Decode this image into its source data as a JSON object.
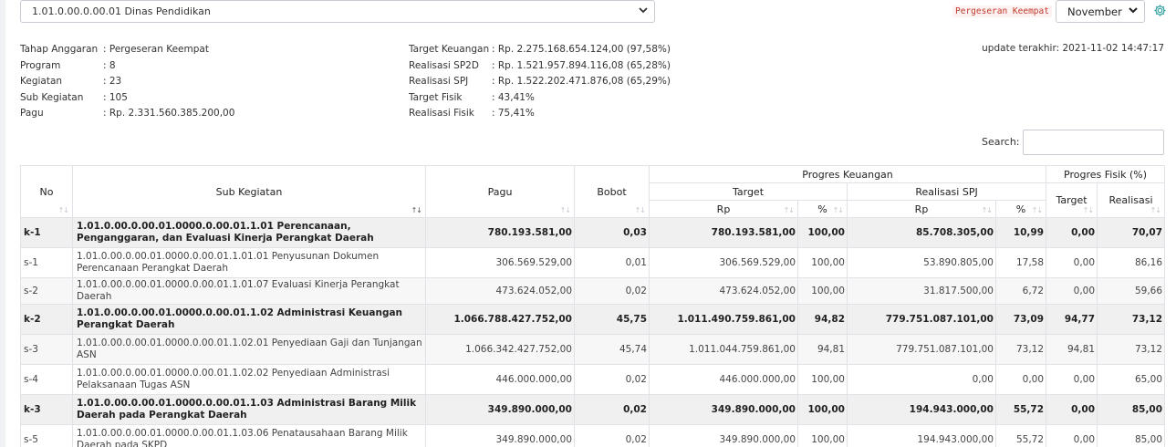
{
  "unit_select": {
    "value": "1.01.0.00.0.00.01 Dinas Pendidikan"
  },
  "stage_badge": "Pergeseran Keempat",
  "month_select": {
    "value": "November"
  },
  "info_left": [
    {
      "label": "Tahap Anggaran",
      "value": ": Pergeseran Keempat"
    },
    {
      "label": "Program",
      "value": ": 8"
    },
    {
      "label": "Kegiatan",
      "value": ": 23"
    },
    {
      "label": "Sub Kegiatan",
      "value": ": 105"
    },
    {
      "label": "Pagu",
      "value": ": Rp. 2.331.560.385.200,00"
    }
  ],
  "info_right": [
    {
      "label": "Target Keuangan",
      "value": ": Rp. 2.275.168.654.124,00 (97,58%)"
    },
    {
      "label": "Realisasi SP2D",
      "value": ": Rp. 1.521.957.894.116,08 (65,28%)"
    },
    {
      "label": "Realisasi SPJ",
      "value": ": Rp. 1.522.202.471.876,08 (65,29%)"
    },
    {
      "label": "Target Fisik",
      "value": ": 43,41%"
    },
    {
      "label": "Realisasi Fisik",
      "value": ": 75,41%"
    }
  ],
  "update_text": "update terakhir: 2021-11-02 14:47:17",
  "search": {
    "label": "Search:",
    "value": ""
  },
  "headers": {
    "no": "No",
    "sub_kegiatan": "Sub Kegiatan",
    "pagu": "Pagu",
    "bobot": "Bobot",
    "progres_keuangan": "Progres Keuangan",
    "progres_fisik": "Progres Fisik (%)",
    "target": "Target",
    "realisasi_spj": "Realisasi SPJ",
    "rp": "Rp",
    "pct": "%",
    "fisik_target": "Target",
    "fisik_realisasi": "Realisasi"
  },
  "rows": [
    {
      "type": "k",
      "no": "k-1",
      "desc": "1.01.0.00.0.00.01.0000.0.00.01.1.01 Perencanaan, Penganggaran, dan Evaluasi Kinerja Perangkat Daerah",
      "pagu": "780.193.581,00",
      "bobot": "0,03",
      "target_rp": "780.193.581,00",
      "target_pct": "100,00",
      "spj_rp": "85.708.305,00",
      "spj_pct": "10,99",
      "fisik_target": "0,00",
      "fisik_realisasi": "70,07"
    },
    {
      "type": "s",
      "no": "s-1",
      "desc": "1.01.0.00.0.00.01.0000.0.00.01.1.01.01 Penyusunan Dokumen Perencanaan Perangkat Daerah",
      "pagu": "306.569.529,00",
      "bobot": "0,01",
      "target_rp": "306.569.529,00",
      "target_pct": "100,00",
      "spj_rp": "53.890.805,00",
      "spj_pct": "17,58",
      "fisik_target": "0,00",
      "fisik_realisasi": "86,16"
    },
    {
      "type": "s",
      "no": "s-2",
      "desc": "1.01.0.00.0.00.01.0000.0.00.01.1.01.07 Evaluasi Kinerja Perangkat Daerah",
      "pagu": "473.624.052,00",
      "bobot": "0,02",
      "target_rp": "473.624.052,00",
      "target_pct": "100,00",
      "spj_rp": "31.817.500,00",
      "spj_pct": "6,72",
      "fisik_target": "0,00",
      "fisik_realisasi": "59,66"
    },
    {
      "type": "k",
      "no": "k-2",
      "desc": "1.01.0.00.0.00.01.0000.0.00.01.1.02 Administrasi Keuangan Perangkat Daerah",
      "pagu": "1.066.788.427.752,00",
      "bobot": "45,75",
      "target_rp": "1.011.490.759.861,00",
      "target_pct": "94,82",
      "spj_rp": "779.751.087.101,00",
      "spj_pct": "73,09",
      "fisik_target": "94,77",
      "fisik_realisasi": "73,12"
    },
    {
      "type": "s",
      "no": "s-3",
      "desc": "1.01.0.00.0.00.01.0000.0.00.01.1.02.01 Penyediaan Gaji dan Tunjangan ASN",
      "pagu": "1.066.342.427.752,00",
      "bobot": "45,74",
      "target_rp": "1.011.044.759.861,00",
      "target_pct": "94,81",
      "spj_rp": "779.751.087.101,00",
      "spj_pct": "73,12",
      "fisik_target": "94,81",
      "fisik_realisasi": "73,12"
    },
    {
      "type": "s",
      "no": "s-4",
      "desc": "1.01.0.00.0.00.01.0000.0.00.01.1.02.02 Penyediaan Administrasi Pelaksanaan Tugas ASN",
      "pagu": "446.000.000,00",
      "bobot": "0,02",
      "target_rp": "446.000.000,00",
      "target_pct": "100,00",
      "spj_rp": "0,00",
      "spj_pct": "0,00",
      "fisik_target": "0,00",
      "fisik_realisasi": "65,00"
    },
    {
      "type": "k",
      "no": "k-3",
      "desc": "1.01.0.00.0.00.01.0000.0.00.01.1.03 Administrasi Barang Milik Daerah pada Perangkat Daerah",
      "pagu": "349.890.000,00",
      "bobot": "0,02",
      "target_rp": "349.890.000,00",
      "target_pct": "100,00",
      "spj_rp": "194.943.000,00",
      "spj_pct": "55,72",
      "fisik_target": "0,00",
      "fisik_realisasi": "85,00"
    },
    {
      "type": "s",
      "no": "s-5",
      "desc": "1.01.0.00.0.00.01.0000.0.00.01.1.03.06 Penatausahaan Barang Milik Daerah pada SKPD",
      "pagu": "349.890.000,00",
      "bobot": "0,02",
      "target_rp": "349.890.000,00",
      "target_pct": "100,00",
      "spj_rp": "194.943.000,00",
      "spj_pct": "55,72",
      "fisik_target": "0,00",
      "fisik_realisasi": "85,00"
    }
  ]
}
